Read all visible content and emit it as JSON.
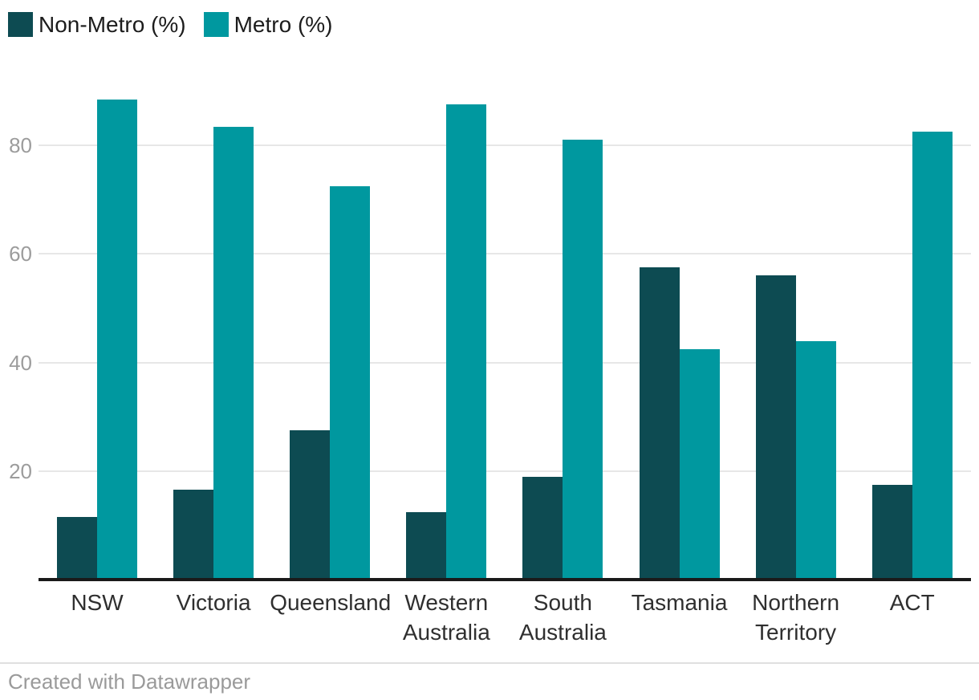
{
  "chart_data": {
    "type": "bar",
    "grouped": true,
    "title": "",
    "xlabel": "",
    "ylabel": "",
    "categories": [
      "NSW",
      "Victoria",
      "Queensland",
      "Western Australia",
      "South Australia",
      "Tasmania",
      "Northern Territory",
      "ACT"
    ],
    "series": [
      {
        "name": "Non-Metro (%)",
        "color": "#0d4b52",
        "values": [
          11.5,
          16.5,
          27.5,
          12.5,
          19,
          57.5,
          56,
          17.5
        ]
      },
      {
        "name": "Metro (%)",
        "color": "#00989f",
        "values": [
          88.5,
          83.5,
          72.5,
          87.5,
          81,
          42.5,
          44,
          82.5
        ]
      }
    ],
    "yticks": [
      20,
      40,
      60,
      80
    ],
    "ylim": [
      0,
      92
    ],
    "grid": true,
    "legend_position": "top-left"
  },
  "footer": {
    "credit": "Created with Datawrapper"
  },
  "colors": {
    "background": "#ffffff",
    "non_metro": "#0d4b52",
    "metro": "#00989f",
    "gridline": "#e7e7e7",
    "axis_line": "#1a1a1a",
    "tick_label": "#9c9c9c",
    "category_label": "#2f2f2f",
    "divider": "#e0e0e0",
    "footer_text": "#9a9a9a"
  }
}
